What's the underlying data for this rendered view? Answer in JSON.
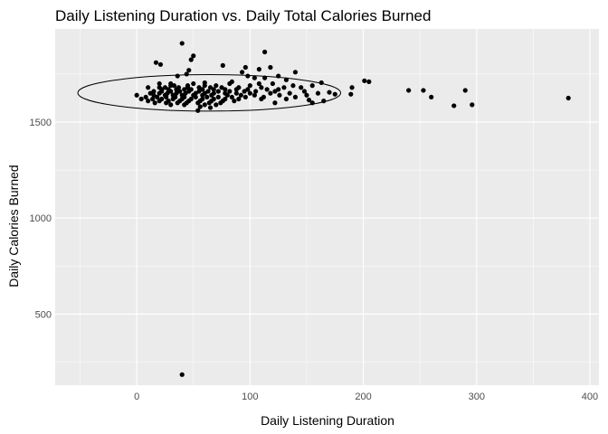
{
  "chart_data": {
    "type": "scatter",
    "title": "Daily Listening Duration vs. Daily Total Calories Burned",
    "xlabel": "Daily Listening Duration",
    "ylabel": "Daily Calories Burned",
    "xlim": [
      -72,
      408
    ],
    "ylim": [
      130,
      1985
    ],
    "x_ticks": [
      0,
      100,
      200,
      300,
      400
    ],
    "y_ticks": [
      500,
      1000,
      1500
    ],
    "grid": true,
    "panel_background": "#ebebeb",
    "grid_color": "#ffffff",
    "point_color": "#000000",
    "ellipse": {
      "center": [
        64,
        1652
      ],
      "x_radius": 116,
      "y_radius": 95
    },
    "points": [
      [
        40,
        1910
      ],
      [
        48,
        1825
      ],
      [
        50,
        1845
      ],
      [
        113,
        1865
      ],
      [
        17,
        1810
      ],
      [
        21,
        1800
      ],
      [
        76,
        1795
      ],
      [
        96,
        1785
      ],
      [
        118,
        1785
      ],
      [
        108,
        1775
      ],
      [
        93,
        1760
      ],
      [
        140,
        1760
      ],
      [
        46,
        1770
      ],
      [
        44,
        1750
      ],
      [
        36,
        1740
      ],
      [
        98,
        1740
      ],
      [
        125,
        1740
      ],
      [
        104,
        1730
      ],
      [
        113,
        1730
      ],
      [
        132,
        1720
      ],
      [
        201,
        1715
      ],
      [
        205,
        1710
      ],
      [
        163,
        1705
      ],
      [
        84,
        1710
      ],
      [
        60,
        1705
      ],
      [
        82,
        1700
      ],
      [
        108,
        1700
      ],
      [
        120,
        1700
      ],
      [
        50,
        1700
      ],
      [
        30,
        1700
      ],
      [
        20,
        1700
      ],
      [
        190,
        1680
      ],
      [
        30,
        1690
      ],
      [
        33,
        1690
      ],
      [
        45,
        1690
      ],
      [
        60,
        1690
      ],
      [
        70,
        1690
      ],
      [
        100,
        1690
      ],
      [
        155,
        1690
      ],
      [
        138,
        1690
      ],
      [
        10,
        1680
      ],
      [
        20,
        1680
      ],
      [
        25,
        1680
      ],
      [
        37,
        1680
      ],
      [
        45,
        1680
      ],
      [
        55,
        1680
      ],
      [
        65,
        1680
      ],
      [
        75,
        1680
      ],
      [
        90,
        1680
      ],
      [
        110,
        1680
      ],
      [
        130,
        1680
      ],
      [
        145,
        1680
      ],
      [
        22,
        1670
      ],
      [
        28,
        1670
      ],
      [
        35,
        1670
      ],
      [
        42,
        1670
      ],
      [
        48,
        1670
      ],
      [
        58,
        1670
      ],
      [
        68,
        1670
      ],
      [
        78,
        1670
      ],
      [
        88,
        1670
      ],
      [
        98,
        1670
      ],
      [
        115,
        1670
      ],
      [
        125,
        1670
      ],
      [
        240,
        1665
      ],
      [
        253,
        1665
      ],
      [
        290,
        1665
      ],
      [
        15,
        1660
      ],
      [
        22,
        1660
      ],
      [
        30,
        1660
      ],
      [
        38,
        1660
      ],
      [
        46,
        1660
      ],
      [
        55,
        1660
      ],
      [
        63,
        1660
      ],
      [
        72,
        1660
      ],
      [
        82,
        1660
      ],
      [
        95,
        1660
      ],
      [
        105,
        1660
      ],
      [
        122,
        1660
      ],
      [
        148,
        1660
      ],
      [
        170,
        1655
      ],
      [
        12,
        1650
      ],
      [
        20,
        1650
      ],
      [
        27,
        1650
      ],
      [
        35,
        1650
      ],
      [
        43,
        1650
      ],
      [
        52,
        1650
      ],
      [
        60,
        1650
      ],
      [
        68,
        1650
      ],
      [
        78,
        1650
      ],
      [
        88,
        1650
      ],
      [
        100,
        1650
      ],
      [
        118,
        1650
      ],
      [
        135,
        1650
      ],
      [
        160,
        1650
      ],
      [
        175,
        1645
      ],
      [
        189,
        1645
      ],
      [
        0,
        1640
      ],
      [
        15,
        1640
      ],
      [
        25,
        1640
      ],
      [
        32,
        1640
      ],
      [
        40,
        1640
      ],
      [
        50,
        1640
      ],
      [
        58,
        1640
      ],
      [
        66,
        1640
      ],
      [
        80,
        1640
      ],
      [
        92,
        1640
      ],
      [
        104,
        1640
      ],
      [
        126,
        1640
      ],
      [
        150,
        1640
      ],
      [
        8,
        1630
      ],
      [
        18,
        1630
      ],
      [
        26,
        1630
      ],
      [
        34,
        1630
      ],
      [
        42,
        1630
      ],
      [
        52,
        1630
      ],
      [
        62,
        1630
      ],
      [
        72,
        1630
      ],
      [
        84,
        1630
      ],
      [
        96,
        1630
      ],
      [
        112,
        1630
      ],
      [
        140,
        1630
      ],
      [
        260,
        1630
      ],
      [
        381,
        1625
      ],
      [
        4,
        1620
      ],
      [
        14,
        1620
      ],
      [
        22,
        1620
      ],
      [
        32,
        1620
      ],
      [
        40,
        1620
      ],
      [
        48,
        1620
      ],
      [
        58,
        1620
      ],
      [
        68,
        1620
      ],
      [
        78,
        1620
      ],
      [
        90,
        1620
      ],
      [
        110,
        1620
      ],
      [
        132,
        1620
      ],
      [
        10,
        1610
      ],
      [
        20,
        1610
      ],
      [
        28,
        1610
      ],
      [
        38,
        1610
      ],
      [
        46,
        1610
      ],
      [
        56,
        1610
      ],
      [
        66,
        1610
      ],
      [
        76,
        1610
      ],
      [
        86,
        1610
      ],
      [
        152,
        1615
      ],
      [
        165,
        1610
      ],
      [
        16,
        1600
      ],
      [
        26,
        1600
      ],
      [
        36,
        1600
      ],
      [
        44,
        1600
      ],
      [
        54,
        1600
      ],
      [
        64,
        1600
      ],
      [
        74,
        1600
      ],
      [
        122,
        1600
      ],
      [
        155,
        1600
      ],
      [
        30,
        1590
      ],
      [
        42,
        1590
      ],
      [
        60,
        1590
      ],
      [
        70,
        1590
      ],
      [
        280,
        1585
      ],
      [
        296,
        1590
      ],
      [
        56,
        1580
      ],
      [
        65,
        1575
      ],
      [
        54,
        1560
      ],
      [
        40,
        185
      ]
    ]
  }
}
